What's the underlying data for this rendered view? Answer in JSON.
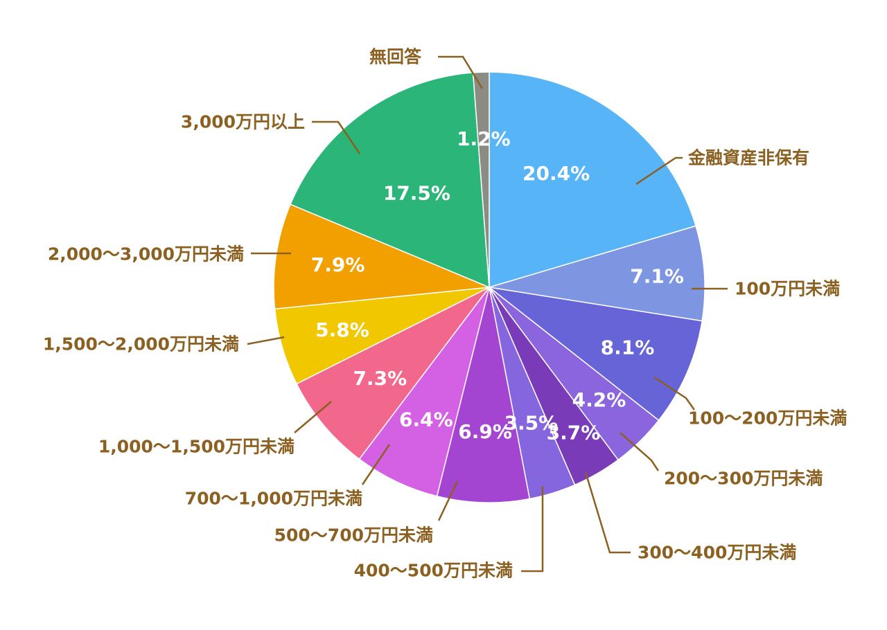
{
  "colors": {
    "label_text": "#8b6021",
    "leader_line": "#8b6021",
    "slice_edge": "#ffffff"
  },
  "chart_data": {
    "type": "pie",
    "start_angle_deg": 0,
    "direction": "clockwise",
    "unit": "%",
    "slices": [
      {
        "label": "金融資産非保有",
        "value": 20.4,
        "value_label": "20.4%",
        "color": "#57b4f7"
      },
      {
        "label": "100万円未満",
        "value": 7.1,
        "value_label": "7.1%",
        "color": "#7e96e1"
      },
      {
        "label": "100〜200万円未満",
        "value": 8.1,
        "value_label": "8.1%",
        "color": "#6664d6"
      },
      {
        "label": "200〜300万円未満",
        "value": 4.2,
        "value_label": "4.2%",
        "color": "#8a65de"
      },
      {
        "label": "300〜400万円未満",
        "value": 3.7,
        "value_label": "3.7%",
        "color": "#7a3bb8"
      },
      {
        "label": "400〜500万円未満",
        "value": 3.5,
        "value_label": "3.5%",
        "color": "#8666de"
      },
      {
        "label": "500〜700万円未満",
        "value": 6.9,
        "value_label": "6.9%",
        "color": "#a445d2"
      },
      {
        "label": "700〜1,000万円未満",
        "value": 6.4,
        "value_label": "6.4%",
        "color": "#d461e3"
      },
      {
        "label": "1,000〜1,500万円未満",
        "value": 7.3,
        "value_label": "7.3%",
        "color": "#f2678c"
      },
      {
        "label": "1,500〜2,000万円未満",
        "value": 5.8,
        "value_label": "5.8%",
        "color": "#f1c800"
      },
      {
        "label": "2,000〜3,000万円未満",
        "value": 7.9,
        "value_label": "7.9%",
        "color": "#f2a000"
      },
      {
        "label": "3,000万円以上",
        "value": 17.5,
        "value_label": "17.5%",
        "color": "#2bb578"
      },
      {
        "label": "無回答",
        "value": 1.2,
        "value_label": "1.2%",
        "color": "#8c8c84"
      }
    ]
  }
}
